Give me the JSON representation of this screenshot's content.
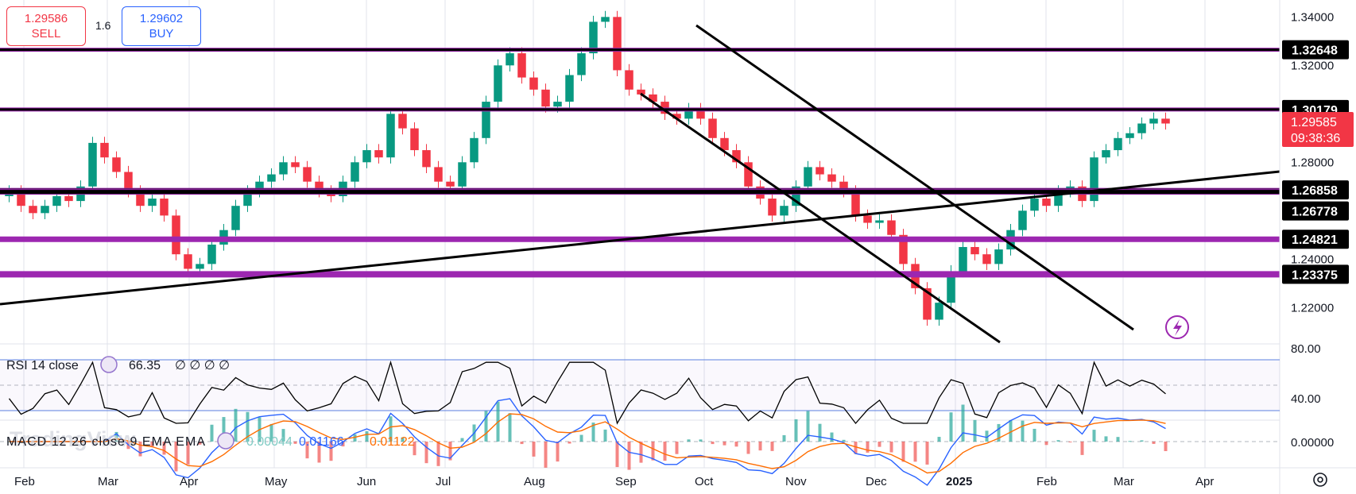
{
  "trade": {
    "sell_price": "1.29586",
    "sell_label": "SELL",
    "spread": "1.6",
    "buy_price": "1.29602",
    "buy_label": "BUY"
  },
  "watermark": "TradingView",
  "price_axis": {
    "ticks": [
      "1.34000",
      "1.32000",
      "1.28000",
      "1.24000",
      "1.22000"
    ],
    "level_badges": [
      "1.32648",
      "1.30179",
      "1.26858",
      "1.26778",
      "1.24821",
      "1.23375"
    ],
    "current_price": "1.29585",
    "countdown": "09:38:36"
  },
  "rsi": {
    "label": "RSI 14 close",
    "value": "66.35",
    "placeholders": "∅ ∅ ∅ ∅",
    "ticks": [
      "80.00",
      "40.00"
    ]
  },
  "macd": {
    "label": "MACD 12 26 close 9 EMA EMA",
    "histogram": "0.00044",
    "macd_value": "0.01166",
    "signal_value": "0.01122",
    "tick": "0.00000"
  },
  "time_axis": [
    "Feb",
    "Mar",
    "Apr",
    "May",
    "Jun",
    "Jul",
    "Aug",
    "Sep",
    "Oct",
    "Nov",
    "Dec",
    "2025",
    "Feb",
    "Mar",
    "Apr"
  ],
  "colors": {
    "up": "#089981",
    "down": "#f23645",
    "level": "#9c27b0",
    "line": "#000000",
    "macd": "#2962ff",
    "signal": "#ff6d00",
    "rsi": "#000000",
    "badge_current": "#f23645"
  },
  "chart_data": {
    "type": "candlestick",
    "y_range": [
      1.205,
      1.347
    ],
    "x_range_months": [
      0,
      14.5
    ],
    "closes": [
      1.268,
      1.262,
      1.259,
      1.262,
      1.266,
      1.264,
      1.27,
      1.288,
      1.282,
      1.276,
      1.268,
      1.262,
      1.265,
      1.258,
      1.242,
      1.236,
      1.238,
      1.246,
      1.252,
      1.262,
      1.268,
      1.272,
      1.275,
      1.28,
      1.278,
      1.272,
      1.268,
      1.266,
      1.272,
      1.28,
      1.285,
      1.282,
      1.3,
      1.294,
      1.285,
      1.278,
      1.272,
      1.27,
      1.28,
      1.29,
      1.305,
      1.32,
      1.325,
      1.315,
      1.31,
      1.303,
      1.305,
      1.316,
      1.325,
      1.338,
      1.34,
      1.318,
      1.31,
      1.308,
      1.305,
      1.3,
      1.298,
      1.302,
      1.298,
      1.29,
      1.285,
      1.28,
      1.27,
      1.265,
      1.258,
      1.262,
      1.27,
      1.278,
      1.275,
      1.272,
      1.268,
      1.258,
      1.255,
      1.256,
      1.25,
      1.238,
      1.228,
      1.215,
      1.222,
      1.235,
      1.245,
      1.242,
      1.238,
      1.244,
      1.252,
      1.26,
      1.265,
      1.262,
      1.268,
      1.27,
      1.264,
      1.282,
      1.285,
      1.29,
      1.292,
      1.296,
      1.298,
      1.296
    ],
    "resistance_levels": [
      1.32648,
      1.30179,
      1.26858,
      1.26778,
      1.24821,
      1.23375
    ],
    "rsi_levels": [
      80,
      40
    ],
    "rsi_last": 66.35,
    "macd_last": 0.01166,
    "signal_last": 0.01122
  }
}
